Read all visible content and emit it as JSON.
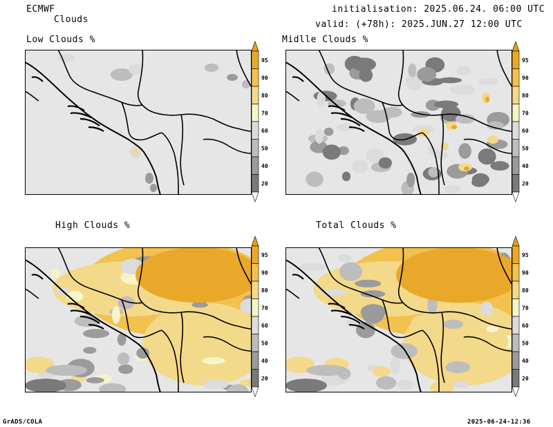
{
  "header": {
    "model": "ECMWF",
    "field": "Clouds",
    "init": "initialisation: 2025.06.24. 06:00 UTC",
    "valid": "valid: (+78h): 2025.JUN.27 12:00 UTC"
  },
  "footer": {
    "credit": "GrADS/COLA",
    "timestamp": "2025-06-24-12:36"
  },
  "panels": [
    {
      "title": "Low Clouds %",
      "coverage": "sparse"
    },
    {
      "title": "Midlle Clouds %",
      "coverage": "moderate"
    },
    {
      "title": "High Clouds %",
      "coverage": "heavy"
    },
    {
      "title": "Total Clouds %",
      "coverage": "heavy"
    }
  ],
  "colorbar": {
    "levels": [
      "20",
      "40",
      "50",
      "60",
      "70",
      "80",
      "90",
      "95"
    ],
    "colors": [
      "#5a5a5a",
      "#7a7a7a",
      "#9b9b9b",
      "#bdbdbd",
      "#dcdcdc",
      "#f5f5c8",
      "#f3d98a",
      "#f2c14e",
      "#eaa82a",
      "#e59f1a"
    ]
  }
}
